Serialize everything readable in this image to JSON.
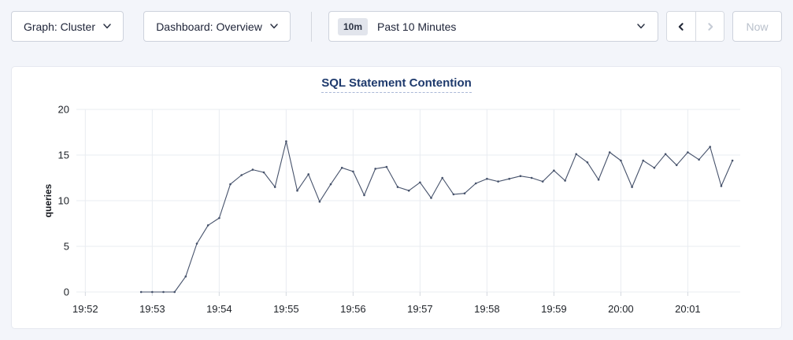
{
  "colors": {
    "page_background": "#f3f5fa",
    "title": "#1e3a6d",
    "grid": "#e9ecf1",
    "tick_mark": "#d4d8df",
    "line": "#46526b"
  },
  "toolbar": {
    "graph_dropdown": {
      "label": "Graph: Cluster",
      "icon": "chevron-down"
    },
    "dashboard_dropdown": {
      "label": "Dashboard: Overview",
      "icon": "chevron-down"
    },
    "time_range": {
      "badge": "10m",
      "label": "Past 10 Minutes",
      "icon": "chevron-down"
    },
    "prev_button": {
      "icon": "chevron-left",
      "enabled": true
    },
    "next_button": {
      "icon": "chevron-right",
      "enabled": false
    },
    "now_button": {
      "label": "Now",
      "enabled": false
    }
  },
  "chart_data": {
    "type": "line",
    "title": "SQL Statement Contention",
    "ylabel": "queries",
    "ylim": [
      0,
      20
    ],
    "yticks": [
      0,
      5,
      10,
      15,
      20
    ],
    "x_domain": [
      "19:51:52",
      "20:01:47"
    ],
    "xticks": [
      "19:52",
      "19:53",
      "19:54",
      "19:55",
      "19:56",
      "19:57",
      "19:58",
      "19:59",
      "20:00",
      "20:01"
    ],
    "grid": true,
    "legend": "none",
    "series": [
      {
        "name": "queries",
        "color": "#46526b",
        "points": [
          [
            "19:52:50",
            0
          ],
          [
            "19:53:00",
            0
          ],
          [
            "19:53:10",
            0
          ],
          [
            "19:53:20",
            0
          ],
          [
            "19:53:30",
            1.7
          ],
          [
            "19:53:40",
            5.3
          ],
          [
            "19:53:50",
            7.3
          ],
          [
            "19:54:00",
            8.1
          ],
          [
            "19:54:10",
            11.8
          ],
          [
            "19:54:20",
            12.8
          ],
          [
            "19:54:30",
            13.4
          ],
          [
            "19:54:40",
            13.1
          ],
          [
            "19:54:50",
            11.5
          ],
          [
            "19:55:00",
            16.5
          ],
          [
            "19:55:10",
            11.1
          ],
          [
            "19:55:20",
            12.9
          ],
          [
            "19:55:30",
            9.9
          ],
          [
            "19:55:40",
            11.8
          ],
          [
            "19:55:50",
            13.6
          ],
          [
            "19:56:00",
            13.2
          ],
          [
            "19:56:10",
            10.6
          ],
          [
            "19:56:20",
            13.5
          ],
          [
            "19:56:30",
            13.7
          ],
          [
            "19:56:40",
            11.5
          ],
          [
            "19:56:50",
            11.1
          ],
          [
            "19:57:00",
            12.0
          ],
          [
            "19:57:10",
            10.3
          ],
          [
            "19:57:20",
            12.5
          ],
          [
            "19:57:30",
            10.7
          ],
          [
            "19:57:40",
            10.8
          ],
          [
            "19:57:50",
            11.9
          ],
          [
            "19:58:00",
            12.4
          ],
          [
            "19:58:10",
            12.1
          ],
          [
            "19:58:20",
            12.4
          ],
          [
            "19:58:30",
            12.7
          ],
          [
            "19:58:40",
            12.5
          ],
          [
            "19:58:50",
            12.1
          ],
          [
            "19:59:00",
            13.3
          ],
          [
            "19:59:10",
            12.2
          ],
          [
            "19:59:20",
            15.1
          ],
          [
            "19:59:30",
            14.2
          ],
          [
            "19:59:40",
            12.3
          ],
          [
            "19:59:50",
            15.3
          ],
          [
            "20:00:00",
            14.4
          ],
          [
            "20:00:10",
            11.5
          ],
          [
            "20:00:20",
            14.4
          ],
          [
            "20:00:30",
            13.6
          ],
          [
            "20:00:40",
            15.1
          ],
          [
            "20:00:50",
            13.9
          ],
          [
            "20:01:00",
            15.3
          ],
          [
            "20:01:10",
            14.5
          ],
          [
            "20:01:20",
            15.9
          ],
          [
            "20:01:30",
            11.6
          ],
          [
            "20:01:40",
            14.4
          ]
        ]
      }
    ]
  }
}
